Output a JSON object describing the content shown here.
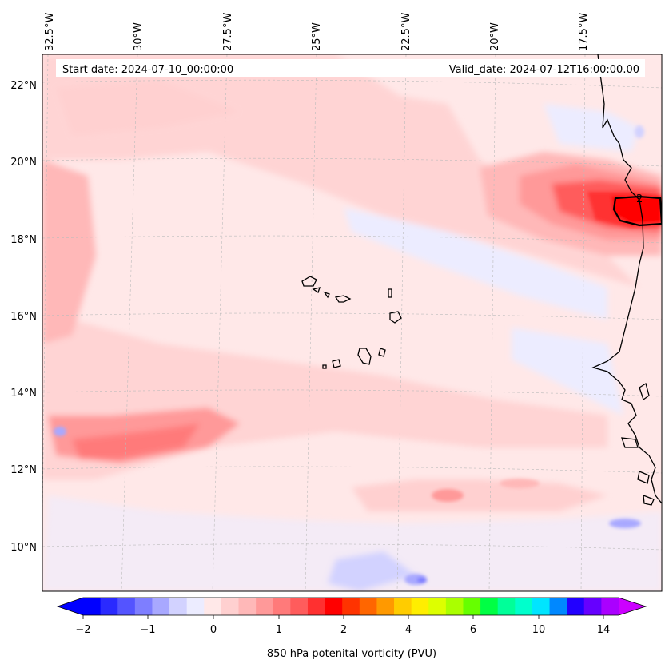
{
  "header": {
    "start_date": "Start date: 2024-07-10_00:00:00",
    "valid_date": "Valid_date: 2024-07-12T16:00:00.00"
  },
  "map": {
    "longitude_labels": [
      "32.5°W",
      "30°W",
      "27.5°W",
      "25°W",
      "22.5°W",
      "20°W",
      "17.5°W"
    ],
    "latitude_labels": [
      "22°N",
      "20°N",
      "18°N",
      "16°N",
      "14°N",
      "12°N",
      "10°N"
    ],
    "contour_label": "2",
    "coastline_color": "#000000",
    "gridline_color": "#bbbbbb"
  },
  "colorbar": {
    "title": "850 hPa potenital vorticity (PVU)",
    "tick_labels": [
      "−2",
      "−1",
      "0",
      "1",
      "2",
      "4",
      "6",
      "10",
      "14"
    ],
    "colors": [
      "#0000ff",
      "#2a2aff",
      "#5454ff",
      "#7e7eff",
      "#a8a8ff",
      "#d2d2ff",
      "#ececff",
      "#ffe8e8",
      "#ffd0d0",
      "#ffb8b8",
      "#ff9999",
      "#ff7a7a",
      "#ff5c5c",
      "#ff3030",
      "#ff0000",
      "#ff3300",
      "#ff6600",
      "#ff9900",
      "#ffcc00",
      "#ffee00",
      "#ddff00",
      "#aaff00",
      "#66ff00",
      "#00ff44",
      "#00ff99",
      "#00ffcc",
      "#00e5ff",
      "#0088ff",
      "#2200ff",
      "#6600ff",
      "#aa00ff"
    ],
    "under_color": "#0000ff",
    "over_color": "#cc00ff"
  }
}
